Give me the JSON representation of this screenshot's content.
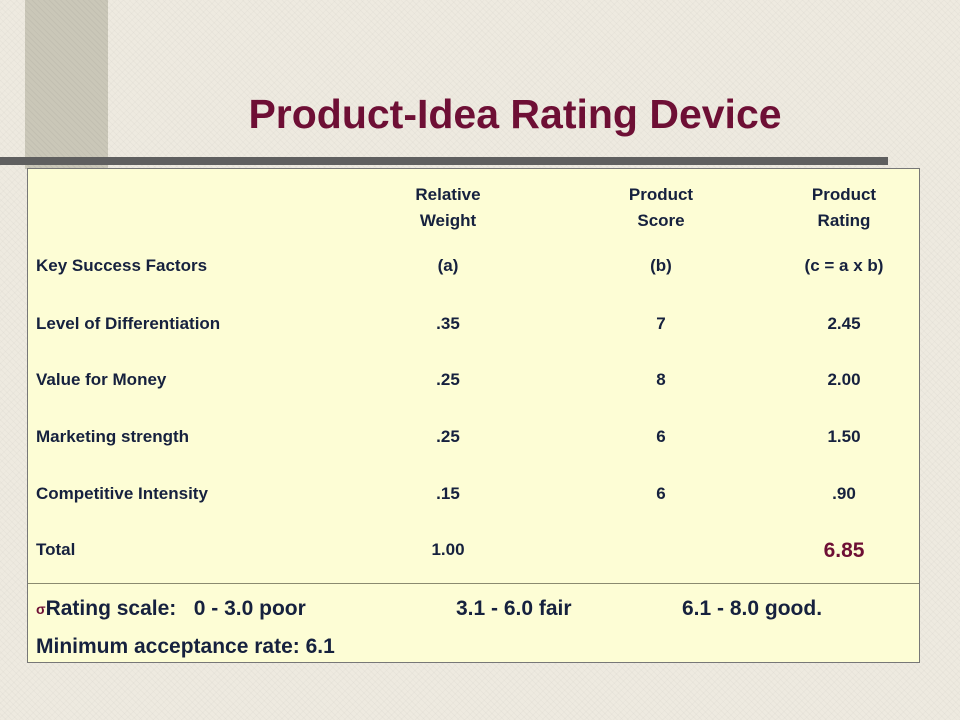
{
  "title": "Product-Idea Rating Device",
  "colors": {
    "title": "#6e0f35",
    "text": "#16213e",
    "panel_bg": "#fdfdd5",
    "page_bg": "#eeeae0",
    "accent_bar": "#cac7b8",
    "rule": "#5f5f5f"
  },
  "table": {
    "headers": {
      "factors": "Key Success Factors",
      "weight_line1": "Relative",
      "weight_line2": "Weight",
      "weight_formula": "(a)",
      "score_line1": "Product",
      "score_line2": "Score",
      "score_formula": "(b)",
      "rating_line1": "Product",
      "rating_line2": "Rating",
      "rating_formula": "(c = a x b)"
    },
    "rows": [
      {
        "factor": "Level of Differentiation",
        "weight": ".35",
        "score": "7",
        "rating": "2.45"
      },
      {
        "factor": "Value for Money",
        "weight": ".25",
        "score": "8",
        "rating": "2.00"
      },
      {
        "factor": "Marketing strength",
        "weight": ".25",
        "score": "6",
        "rating": "1.50"
      },
      {
        "factor": "Competitive Intensity",
        "weight": ".15",
        "score": "6",
        "rating": ".90"
      }
    ],
    "total": {
      "label": "Total",
      "weight": "1.00",
      "score": "",
      "rating": "6.85"
    }
  },
  "scale": {
    "bullet": "σ",
    "label": "Rating scale:   0 - 3.0 poor",
    "fair": "3.1 - 6.0 fair",
    "good": "6.1 - 8.0 good."
  },
  "minimum": "Minimum acceptance rate: 6.1"
}
